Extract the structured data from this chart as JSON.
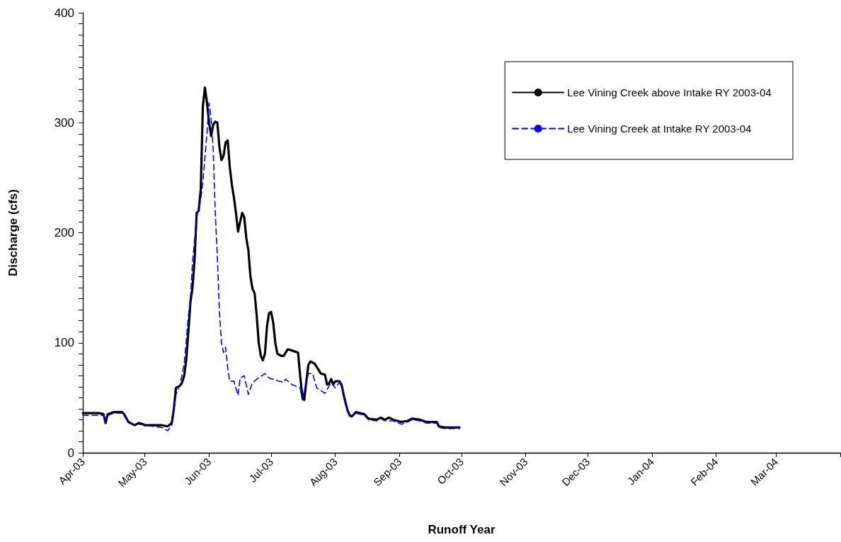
{
  "chart_data": {
    "type": "line",
    "xlabel": "Runoff Year",
    "ylabel": "Discharge (cfs)",
    "legend": "top right",
    "grid": false,
    "marker": "none",
    "xlim": [
      "2003-04-01",
      "2004-04-01"
    ],
    "xticks": [
      {
        "value": "2003-04-01",
        "label": "Apr-03"
      },
      {
        "value": "2003-05-01",
        "label": "May-03"
      },
      {
        "value": "2003-06-01",
        "label": "Jun-03"
      },
      {
        "value": "2003-07-01",
        "label": "Jul-03"
      },
      {
        "value": "2003-08-01",
        "label": "Aug-03"
      },
      {
        "value": "2003-09-01",
        "label": "Sep-03"
      },
      {
        "value": "2003-10-01",
        "label": "Oct-03"
      },
      {
        "value": "2003-11-01",
        "label": "Nov-03"
      },
      {
        "value": "2003-12-01",
        "label": "Dec-03"
      },
      {
        "value": "2004-01-01",
        "label": "Jan-04"
      },
      {
        "value": "2004-02-01",
        "label": "Feb-04"
      },
      {
        "value": "2004-03-01",
        "label": "Mar-04"
      },
      {
        "value": "2004-04-01",
        "label": null
      }
    ],
    "ylim": [
      0,
      400
    ],
    "yticks": [
      0,
      {
        "value": 10,
        "label": null
      },
      {
        "value": 20,
        "label": null
      },
      {
        "value": 30,
        "label": null
      },
      {
        "value": 40,
        "label": null
      },
      {
        "value": 50,
        "label": null
      },
      {
        "value": 60,
        "label": null
      },
      {
        "value": 70,
        "label": null
      },
      {
        "value": 80,
        "label": null
      },
      {
        "value": 90,
        "label": null
      },
      100,
      {
        "value": 110,
        "label": null
      },
      {
        "value": 120,
        "label": null
      },
      {
        "value": 130,
        "label": null
      },
      {
        "value": 140,
        "label": null
      },
      {
        "value": 150,
        "label": null
      },
      {
        "value": 160,
        "label": null
      },
      {
        "value": 170,
        "label": null
      },
      {
        "value": 180,
        "label": null
      },
      {
        "value": 190,
        "label": null
      },
      200,
      {
        "value": 210,
        "label": null
      },
      {
        "value": 220,
        "label": null
      },
      {
        "value": 230,
        "label": null
      },
      {
        "value": 240,
        "label": null
      },
      {
        "value": 250,
        "label": null
      },
      {
        "value": 260,
        "label": null
      },
      {
        "value": 270,
        "label": null
      },
      {
        "value": 280,
        "label": null
      },
      {
        "value": 290,
        "label": null
      },
      300,
      {
        "value": 310,
        "label": null
      },
      {
        "value": 320,
        "label": null
      },
      {
        "value": 330,
        "label": null
      },
      {
        "value": 340,
        "label": null
      },
      {
        "value": 350,
        "label": null
      },
      {
        "value": 360,
        "label": null
      },
      {
        "value": 370,
        "label": null
      },
      {
        "value": 380,
        "label": null
      },
      {
        "value": 390,
        "label": null
      },
      400
    ],
    "series": [
      {
        "name": "Lee Vining Creek above Intake RY 2003-04",
        "color": "#000000",
        "line_style": "solid",
        "x": [
          "2003-04-01",
          "2003-04-05",
          "2003-04-09",
          "2003-04-11",
          "2003-04-12",
          "2003-04-13",
          "2003-04-16",
          "2003-04-20",
          "2003-04-21",
          "2003-04-23",
          "2003-04-26",
          "2003-04-28",
          "2003-04-30",
          "2003-05-01",
          "2003-05-09",
          "2003-05-12",
          "2003-05-14",
          "2003-05-15",
          "2003-05-16",
          "2003-05-17",
          "2003-05-18",
          "2003-05-19",
          "2003-05-20",
          "2003-05-21",
          "2003-05-22",
          "2003-05-23",
          "2003-05-24",
          "2003-05-25",
          "2003-05-26",
          "2003-05-27",
          "2003-05-28",
          "2003-05-29",
          "2003-05-30",
          "2003-05-31",
          "2003-06-01",
          "2003-06-02",
          "2003-06-03",
          "2003-06-04",
          "2003-06-05",
          "2003-06-06",
          "2003-06-07",
          "2003-06-08",
          "2003-06-09",
          "2003-06-10",
          "2003-06-11",
          "2003-06-12",
          "2003-06-13",
          "2003-06-14",
          "2003-06-15",
          "2003-06-16",
          "2003-06-17",
          "2003-06-18",
          "2003-06-19",
          "2003-06-20",
          "2003-06-21",
          "2003-06-22",
          "2003-06-23",
          "2003-06-24",
          "2003-06-25",
          "2003-06-26",
          "2003-06-27",
          "2003-06-28",
          "2003-06-29",
          "2003-06-30",
          "2003-07-01",
          "2003-07-02",
          "2003-07-03",
          "2003-07-04",
          "2003-07-06",
          "2003-07-07",
          "2003-07-09",
          "2003-07-11",
          "2003-07-14",
          "2003-07-15",
          "2003-07-16",
          "2003-07-17",
          "2003-07-18",
          "2003-07-19",
          "2003-07-20",
          "2003-07-22",
          "2003-07-23",
          "2003-07-25",
          "2003-07-27",
          "2003-07-28",
          "2003-07-29",
          "2003-07-30",
          "2003-07-31",
          "2003-08-01",
          "2003-08-03",
          "2003-08-04",
          "2003-08-05",
          "2003-08-06",
          "2003-08-07",
          "2003-08-08",
          "2003-08-09",
          "2003-08-11",
          "2003-08-15",
          "2003-08-17",
          "2003-08-21",
          "2003-08-23",
          "2003-08-25",
          "2003-08-27",
          "2003-08-29",
          "2003-09-02",
          "2003-09-05",
          "2003-09-07",
          "2003-09-11",
          "2003-09-14",
          "2003-09-19",
          "2003-09-20",
          "2003-09-23",
          "2003-09-30"
        ],
        "values": [
          36,
          36,
          36,
          35,
          27,
          35,
          37,
          37,
          35,
          28,
          25,
          27,
          26,
          25,
          25,
          24,
          27,
          40,
          59,
          60,
          61,
          64,
          70,
          85,
          110,
          137,
          150,
          175,
          218,
          220,
          240,
          315,
          332,
          318,
          300,
          288,
          298,
          301,
          300,
          278,
          266,
          270,
          282,
          284,
          260,
          244,
          232,
          218,
          201,
          210,
          218,
          214,
          195,
          184,
          160,
          149,
          145,
          125,
          100,
          88,
          84,
          90,
          115,
          127,
          128,
          118,
          100,
          90,
          88,
          88,
          94,
          93,
          91,
          70,
          52,
          48,
          65,
          80,
          83,
          81,
          78,
          72,
          71,
          62,
          63,
          67,
          62,
          65,
          65,
          62,
          53,
          45,
          38,
          34,
          33,
          37,
          35,
          31,
          30,
          32,
          30,
          32,
          30,
          28,
          29,
          31,
          30,
          28,
          28,
          24,
          23,
          23
        ]
      },
      {
        "name": "Lee Vining Creek at Intake RY 2003-04",
        "color": "#0000ff",
        "line_style": "dashed",
        "x": [
          "2003-04-01",
          "2003-04-11",
          "2003-04-12",
          "2003-04-13",
          "2003-04-16",
          "2003-04-20",
          "2003-04-23",
          "2003-04-26",
          "2003-04-28",
          "2003-05-01",
          "2003-05-09",
          "2003-05-12",
          "2003-05-14",
          "2003-05-16",
          "2003-05-18",
          "2003-05-20",
          "2003-05-22",
          "2003-05-23",
          "2003-05-24",
          "2003-05-26",
          "2003-05-28",
          "2003-05-29",
          "2003-05-31",
          "2003-06-01",
          "2003-06-02",
          "2003-06-03",
          "2003-06-04",
          "2003-06-05",
          "2003-06-06",
          "2003-06-07",
          "2003-06-08",
          "2003-06-09",
          "2003-06-10",
          "2003-06-11",
          "2003-06-13",
          "2003-06-15",
          "2003-06-16",
          "2003-06-18",
          "2003-06-20",
          "2003-06-22",
          "2003-06-25",
          "2003-06-28",
          "2003-06-30",
          "2003-07-03",
          "2003-07-07",
          "2003-07-08",
          "2003-07-11",
          "2003-07-15",
          "2003-07-16",
          "2003-07-19",
          "2003-07-21",
          "2003-07-23",
          "2003-07-27",
          "2003-07-30",
          "2003-08-01",
          "2003-08-03",
          "2003-08-05",
          "2003-08-07",
          "2003-08-08",
          "2003-08-11",
          "2003-08-15",
          "2003-08-17",
          "2003-08-21",
          "2003-08-23",
          "2003-08-25",
          "2003-08-29",
          "2003-09-02",
          "2003-09-05",
          "2003-09-07",
          "2003-09-11",
          "2003-09-14",
          "2003-09-19",
          "2003-09-20",
          "2003-09-23",
          "2003-09-30"
        ],
        "values": [
          34,
          34,
          27,
          34,
          36,
          36,
          28,
          25,
          26,
          25,
          23,
          20,
          25,
          53,
          62,
          81,
          124,
          141,
          173,
          214,
          231,
          246,
          291,
          318,
          304,
          276,
          218,
          178,
          128,
          100,
          91,
          96,
          77,
          65,
          65,
          52,
          68,
          70,
          53,
          64,
          68,
          72,
          68,
          66,
          64,
          67,
          62,
          59,
          48,
          72,
          72,
          59,
          54,
          64,
          59,
          64,
          55,
          38,
          33,
          36,
          34,
          30,
          29,
          31,
          29,
          29,
          26,
          28,
          30,
          29,
          27,
          27,
          23,
          22,
          22
        ]
      }
    ]
  }
}
